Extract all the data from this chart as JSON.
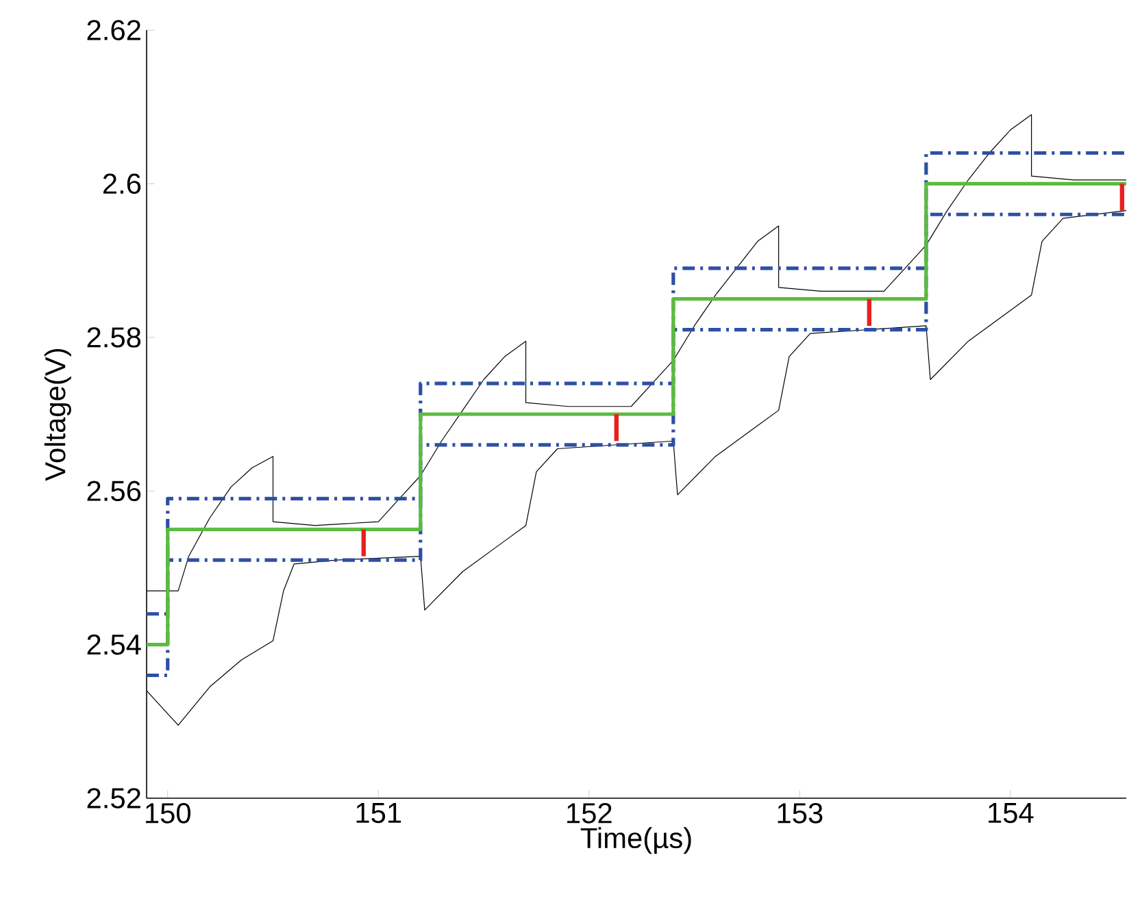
{
  "chart_data": {
    "type": "line",
    "xlabel": "Time(µs)",
    "ylabel": "Voltage(V)",
    "xlim": [
      149.9,
      154.55
    ],
    "ylim": [
      2.52,
      2.62
    ],
    "xticks": [
      150,
      151,
      152,
      153,
      154
    ],
    "yticks": [
      2.52,
      2.54,
      2.56,
      2.58,
      2.6,
      2.62
    ],
    "series": [
      {
        "color": "#000000",
        "x": [
          149.9,
          150.0,
          150.05,
          150.1,
          150.2,
          150.3,
          150.4,
          150.5,
          150.5,
          150.7,
          151.0,
          151.1,
          151.2,
          151.3,
          151.4,
          151.5,
          151.6,
          151.7,
          151.7,
          151.9,
          152.2,
          152.3,
          152.4,
          152.5,
          152.6,
          152.7,
          152.8,
          152.9,
          152.9,
          153.1,
          153.4,
          153.5,
          153.6,
          153.7,
          153.8,
          153.9,
          154.0,
          154.1,
          154.1,
          154.3,
          154.55
        ],
        "values": [
          2.547,
          2.547,
          2.547,
          2.5515,
          2.5565,
          2.5605,
          2.563,
          2.5645,
          2.556,
          2.5555,
          2.556,
          2.559,
          2.562,
          2.5665,
          2.5705,
          2.5745,
          2.5775,
          2.5795,
          2.5715,
          2.571,
          2.571,
          2.574,
          2.577,
          2.5815,
          2.5855,
          2.589,
          2.5925,
          2.5945,
          2.5865,
          2.586,
          2.586,
          2.589,
          2.592,
          2.5965,
          2.6005,
          2.604,
          2.607,
          2.609,
          2.601,
          2.6005,
          2.6005
        ]
      },
      {
        "color": "#000000",
        "x": [
          149.9,
          150.05,
          150.2,
          150.35,
          150.5,
          150.55,
          150.6,
          150.8,
          151.2,
          151.22,
          151.4,
          151.6,
          151.7,
          151.75,
          151.85,
          152.4,
          152.42,
          152.6,
          152.8,
          152.9,
          152.95,
          153.05,
          153.6,
          153.62,
          153.8,
          154.0,
          154.1,
          154.15,
          154.25,
          154.55
        ],
        "values": [
          2.534,
          2.5295,
          2.5345,
          2.538,
          2.5405,
          2.547,
          2.5505,
          2.551,
          2.5515,
          2.5445,
          2.5495,
          2.5535,
          2.5555,
          2.5625,
          2.5655,
          2.5665,
          2.5595,
          2.5645,
          2.5685,
          2.5705,
          2.5775,
          2.5805,
          2.5815,
          2.5745,
          2.5795,
          2.5835,
          2.5855,
          2.5925,
          2.5955,
          2.5965
        ]
      },
      {
        "type": "step",
        "color": "#2e4fa3",
        "line_style": "dashed",
        "x": [
          149.9,
          150.0,
          151.2,
          152.4,
          153.6,
          154.55
        ],
        "values": [
          2.544,
          2.559,
          2.574,
          2.589,
          2.604,
          2.604
        ]
      },
      {
        "type": "step",
        "color": "#2e4fa3",
        "line_style": "dashed",
        "x": [
          149.9,
          150.0,
          151.2,
          152.4,
          153.6,
          154.55
        ],
        "values": [
          2.536,
          2.551,
          2.566,
          2.581,
          2.596,
          2.596
        ]
      },
      {
        "type": "step",
        "color": "#5dbb3f",
        "line_style": "solid",
        "x": [
          149.9,
          150.0,
          151.2,
          152.4,
          153.6,
          154.55
        ],
        "values": [
          2.54,
          2.555,
          2.57,
          2.585,
          2.6,
          2.6
        ]
      },
      {
        "color": "#e8201f",
        "x": [
          150.93,
          150.93
        ],
        "values": [
          2.555,
          2.5515
        ]
      },
      {
        "color": "#e8201f",
        "x": [
          152.13,
          152.13
        ],
        "values": [
          2.57,
          2.5665
        ]
      },
      {
        "color": "#e8201f",
        "x": [
          153.33,
          153.33
        ],
        "values": [
          2.585,
          2.5815
        ]
      },
      {
        "color": "#e8201f",
        "x": [
          154.53,
          154.53
        ],
        "values": [
          2.6,
          2.5965
        ]
      }
    ]
  }
}
